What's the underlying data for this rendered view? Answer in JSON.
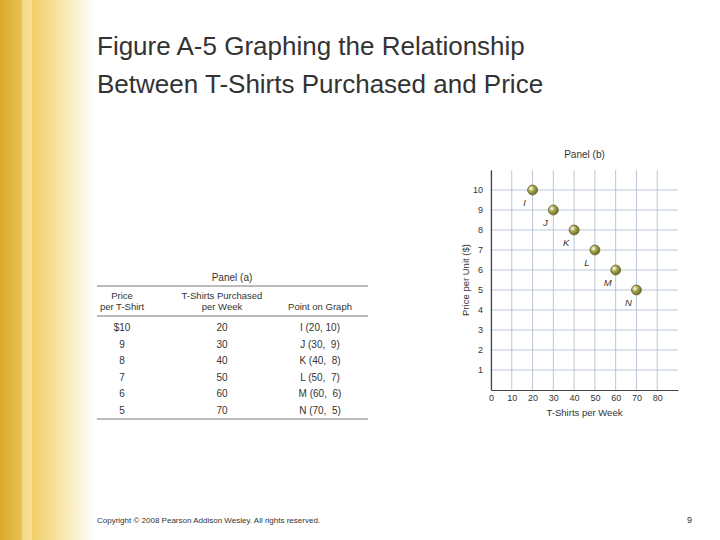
{
  "slide": {
    "title_lines": [
      "Figure A-5  Graphing the Relationship",
      "Between T-Shirts Purchased and Price"
    ],
    "footer": "Copyright © 2008 Pearson Addison Wesley. All rights reserved.",
    "page": "9"
  },
  "table": {
    "title": "Panel (a)",
    "headers": [
      [
        "Price",
        "per T-Shirt"
      ],
      [
        "T-Shirts Purchased",
        "per Week"
      ],
      [
        "Point on Graph"
      ]
    ],
    "rows": [
      [
        "$10",
        "20",
        "I (20, 10)"
      ],
      [
        "9",
        "30",
        "J (30,  9)"
      ],
      [
        "8",
        "40",
        "K (40,  8)"
      ],
      [
        "7",
        "50",
        "L (50,  7)"
      ],
      [
        "6",
        "60",
        "M (60,  6)"
      ],
      [
        "5",
        "70",
        "N (70,  5)"
      ]
    ]
  },
  "chart_data": {
    "type": "scatter",
    "title": "Panel (b)",
    "x_label": "T-Shirts per Week",
    "y_label": "Price per Unit ($)",
    "x": [
      20,
      30,
      40,
      50,
      60,
      70
    ],
    "values": [
      10,
      9,
      8,
      7,
      6,
      5
    ],
    "point_labels": [
      "I",
      "J",
      "K",
      "L",
      "M",
      "N"
    ],
    "color": "#a3a244",
    "marker": "circle",
    "xlim": [
      0,
      90
    ],
    "ylim": [
      0,
      11
    ],
    "xticks": [
      0,
      10,
      20,
      30,
      40,
      50,
      60,
      70,
      80
    ],
    "yticks": [
      1,
      2,
      3,
      4,
      5,
      6,
      7,
      8,
      9,
      10
    ],
    "grid": true
  }
}
